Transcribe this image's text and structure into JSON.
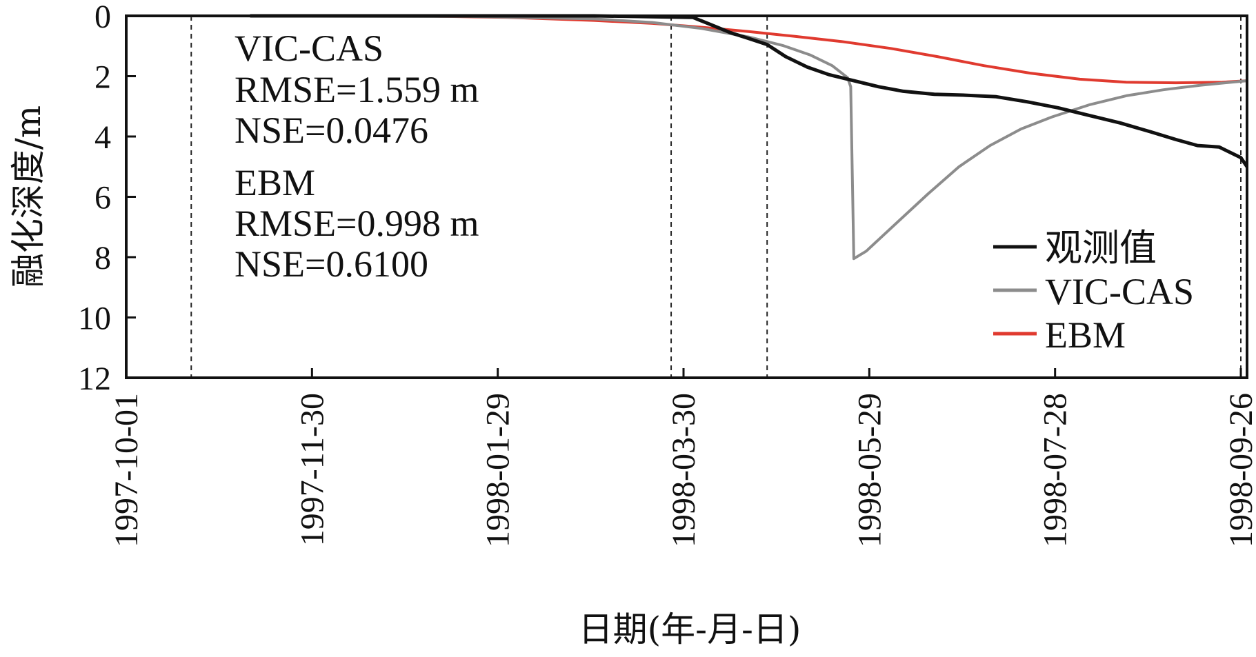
{
  "chart_data": {
    "type": "line",
    "title": "",
    "xlabel": "日期(年-月-日)",
    "ylabel": "融化深度/m",
    "x_ticks": [
      "1997-10-01",
      "1997-11-30",
      "1998-01-29",
      "1998-03-30",
      "1998-05-29",
      "1998-07-28",
      "1998-09-26"
    ],
    "xlim": [
      "1997-10-01",
      "1998-09-28"
    ],
    "y_ticks": [
      "0",
      "2",
      "4",
      "6",
      "8",
      "10",
      "12"
    ],
    "ylim": [
      0,
      12
    ],
    "y_inverted": true,
    "grid": false,
    "legend_position": "right",
    "vertical_reference_lines": [
      "1997-10-22",
      "1998-03-26",
      "1998-04-26",
      "1998-09-26"
    ],
    "annotations": [
      "VIC-CAS",
      "RMSE=1.559 m",
      "NSE=0.0476",
      "EBM",
      "RMSE=0.998 m",
      "NSE=0.6100"
    ],
    "series": [
      {
        "name": "观测值",
        "color": "#111111",
        "points": [
          [
            "1997-11-10",
            0.0
          ],
          [
            "1998-03-01",
            0.0
          ],
          [
            "1998-04-02",
            0.05
          ],
          [
            "1998-04-08",
            0.3
          ],
          [
            "1998-04-14",
            0.55
          ],
          [
            "1998-04-20",
            0.75
          ],
          [
            "1998-04-26",
            0.95
          ],
          [
            "1998-05-02",
            1.35
          ],
          [
            "1998-05-09",
            1.7
          ],
          [
            "1998-05-16",
            1.95
          ],
          [
            "1998-05-24",
            2.15
          ],
          [
            "1998-06-01",
            2.35
          ],
          [
            "1998-06-09",
            2.5
          ],
          [
            "1998-06-19",
            2.6
          ],
          [
            "1998-06-29",
            2.63
          ],
          [
            "1998-07-09",
            2.68
          ],
          [
            "1998-07-19",
            2.85
          ],
          [
            "1998-07-29",
            3.05
          ],
          [
            "1998-08-08",
            3.3
          ],
          [
            "1998-08-18",
            3.55
          ],
          [
            "1998-08-28",
            3.85
          ],
          [
            "1998-09-05",
            4.1
          ],
          [
            "1998-09-12",
            4.3
          ],
          [
            "1998-09-19",
            4.35
          ],
          [
            "1998-09-26",
            4.7
          ],
          [
            "1998-09-28",
            5.0
          ]
        ]
      },
      {
        "name": "VIC-CAS",
        "color": "#8c8c8c",
        "points": [
          [
            "1997-10-01",
            0.0
          ],
          [
            "1998-01-20",
            0.02
          ],
          [
            "1998-03-01",
            0.1
          ],
          [
            "1998-03-20",
            0.22
          ],
          [
            "1998-04-05",
            0.42
          ],
          [
            "1998-04-20",
            0.7
          ],
          [
            "1998-05-01",
            0.98
          ],
          [
            "1998-05-10",
            1.3
          ],
          [
            "1998-05-17",
            1.65
          ],
          [
            "1998-05-22",
            2.05
          ],
          [
            "1998-05-23",
            2.35
          ],
          [
            "1998-05-24",
            8.05
          ],
          [
            "1998-05-28",
            7.8
          ],
          [
            "1998-06-07",
            6.85
          ],
          [
            "1998-06-17",
            5.9
          ],
          [
            "1998-06-27",
            5.0
          ],
          [
            "1998-07-07",
            4.3
          ],
          [
            "1998-07-17",
            3.75
          ],
          [
            "1998-07-27",
            3.35
          ],
          [
            "1998-08-08",
            2.95
          ],
          [
            "1998-08-20",
            2.65
          ],
          [
            "1998-09-01",
            2.45
          ],
          [
            "1998-09-13",
            2.3
          ],
          [
            "1998-09-28",
            2.15
          ]
        ]
      },
      {
        "name": "EBM",
        "color": "#e03a2f",
        "points": [
          [
            "1997-10-01",
            0.0
          ],
          [
            "1998-01-01",
            0.0
          ],
          [
            "1998-02-01",
            0.05
          ],
          [
            "1998-03-01",
            0.15
          ],
          [
            "1998-03-20",
            0.25
          ],
          [
            "1998-04-05",
            0.38
          ],
          [
            "1998-04-20",
            0.52
          ],
          [
            "1998-05-05",
            0.68
          ],
          [
            "1998-05-20",
            0.85
          ],
          [
            "1998-06-05",
            1.08
          ],
          [
            "1998-06-20",
            1.35
          ],
          [
            "1998-07-05",
            1.65
          ],
          [
            "1998-07-20",
            1.9
          ],
          [
            "1998-08-05",
            2.1
          ],
          [
            "1998-08-20",
            2.2
          ],
          [
            "1998-09-05",
            2.22
          ],
          [
            "1998-09-20",
            2.2
          ],
          [
            "1998-09-28",
            2.15
          ]
        ]
      }
    ]
  }
}
